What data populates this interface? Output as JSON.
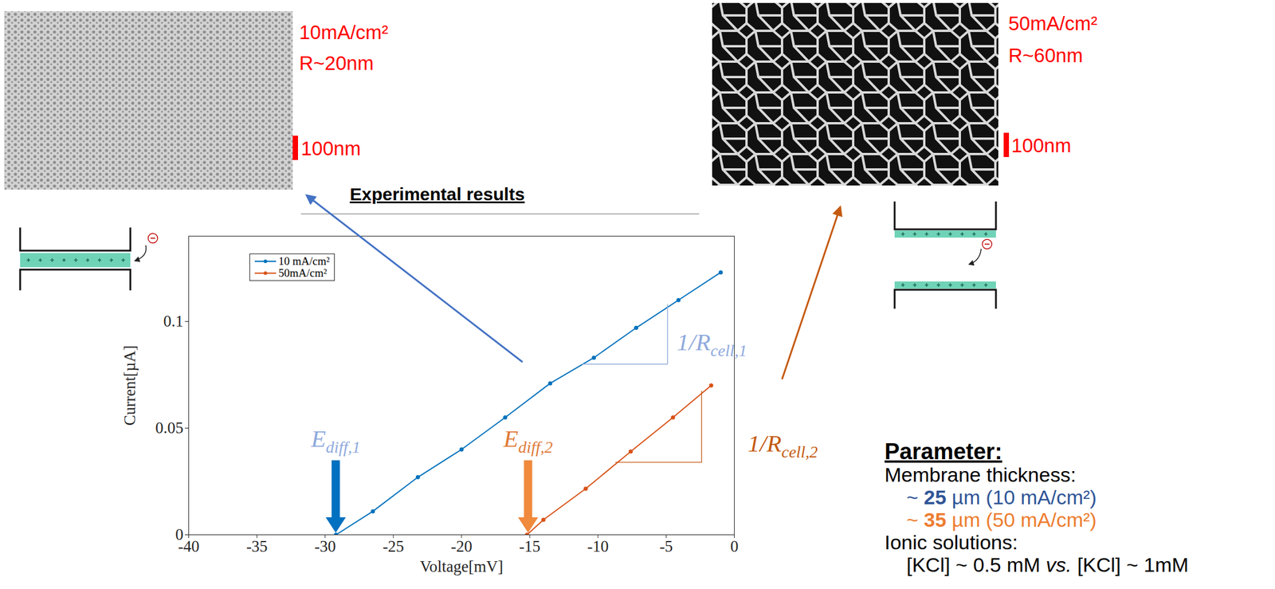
{
  "chart_data": {
    "type": "line",
    "title": "Experimental results",
    "x_label": "Voltage[mV]",
    "y_label": "Current[µA]",
    "xlim": [
      -40,
      0
    ],
    "xticks": [
      -40,
      -35,
      -30,
      -25,
      -20,
      -15,
      -10,
      -5,
      0
    ],
    "ylim": [
      0,
      0.14
    ],
    "yticks": [
      0,
      0.05,
      0.1
    ],
    "grid": false,
    "legend": "top-left",
    "marker": "dot",
    "line_style": "solid",
    "series": [
      {
        "name": "10 mA/cm²",
        "color": "#0072bd",
        "x": [
          -29.2,
          -26.5,
          -23.2,
          -20.0,
          -16.8,
          -13.5,
          -10.3,
          -7.2,
          -4.1,
          -1.0
        ],
        "values": [
          0,
          0.011,
          0.027,
          0.04,
          0.055,
          0.071,
          0.083,
          0.097,
          0.11,
          0.123
        ]
      },
      {
        "name": "50mA/cm²",
        "color": "#d95319",
        "x": [
          -15.2,
          -14.0,
          -10.9,
          -7.6,
          -4.5,
          -1.7
        ],
        "values": [
          0,
          0.007,
          0.0216,
          0.039,
          0.055,
          0.07
        ]
      }
    ],
    "diffusion_potentials": [
      {
        "label": {
          "base": "E",
          "sub": "diff,1"
        },
        "x": -29.2,
        "y": 0.045,
        "color": "#8faadc",
        "arrow_color": "#0070c0"
      },
      {
        "label": {
          "base": "E",
          "sub": "diff,2"
        },
        "x": -15.1,
        "y": 0.045,
        "color": "#e07b39",
        "arrow_color": "#f08a3c"
      }
    ],
    "slopes": [
      {
        "label": {
          "base": "1/R",
          "sub": "cell,1"
        },
        "x1": -11.2,
        "x2": -4.9,
        "y1": 0.08,
        "y2": 0.108,
        "label_x": -4.2,
        "label_y": 0.0905,
        "color": "#8faadc"
      },
      {
        "label": {
          "base": "1/R",
          "sub": "cell,2"
        },
        "x1": -8.7,
        "x2": -2.4,
        "y1": 0.034,
        "y2": 0.0674,
        "label_x": 1.0,
        "label_y": 0.0428,
        "color": "#c55a11"
      }
    ]
  },
  "images": [
    {
      "lines": [
        "10mA/cm²",
        "R~20nm"
      ],
      "scale_bar": "100nm",
      "arrow_color": "#4472c4"
    },
    {
      "lines": [
        "50mA/cm²",
        "R~60nm"
      ],
      "scale_bar": "100nm",
      "arrow_color": "#c55a11"
    }
  ],
  "parameters": {
    "title": "Parameter:",
    "membrane_label": "Membrane thickness:",
    "membranes": [
      {
        "prefix": "~ ",
        "value": 25,
        "suffix": " µm (10 mA/cm²)",
        "color": "#2f5597"
      },
      {
        "prefix": "~ ",
        "value": 35,
        "suffix": " µm (50 mA/cm²)",
        "color": "#ed7d31"
      }
    ],
    "ionic_label": "Ionic solutions:",
    "ionic": {
      "left": "[KCl] ~ 0.5 mM ",
      "joiner": "vs.",
      "right": " [KCl] ~ 1mM"
    }
  }
}
